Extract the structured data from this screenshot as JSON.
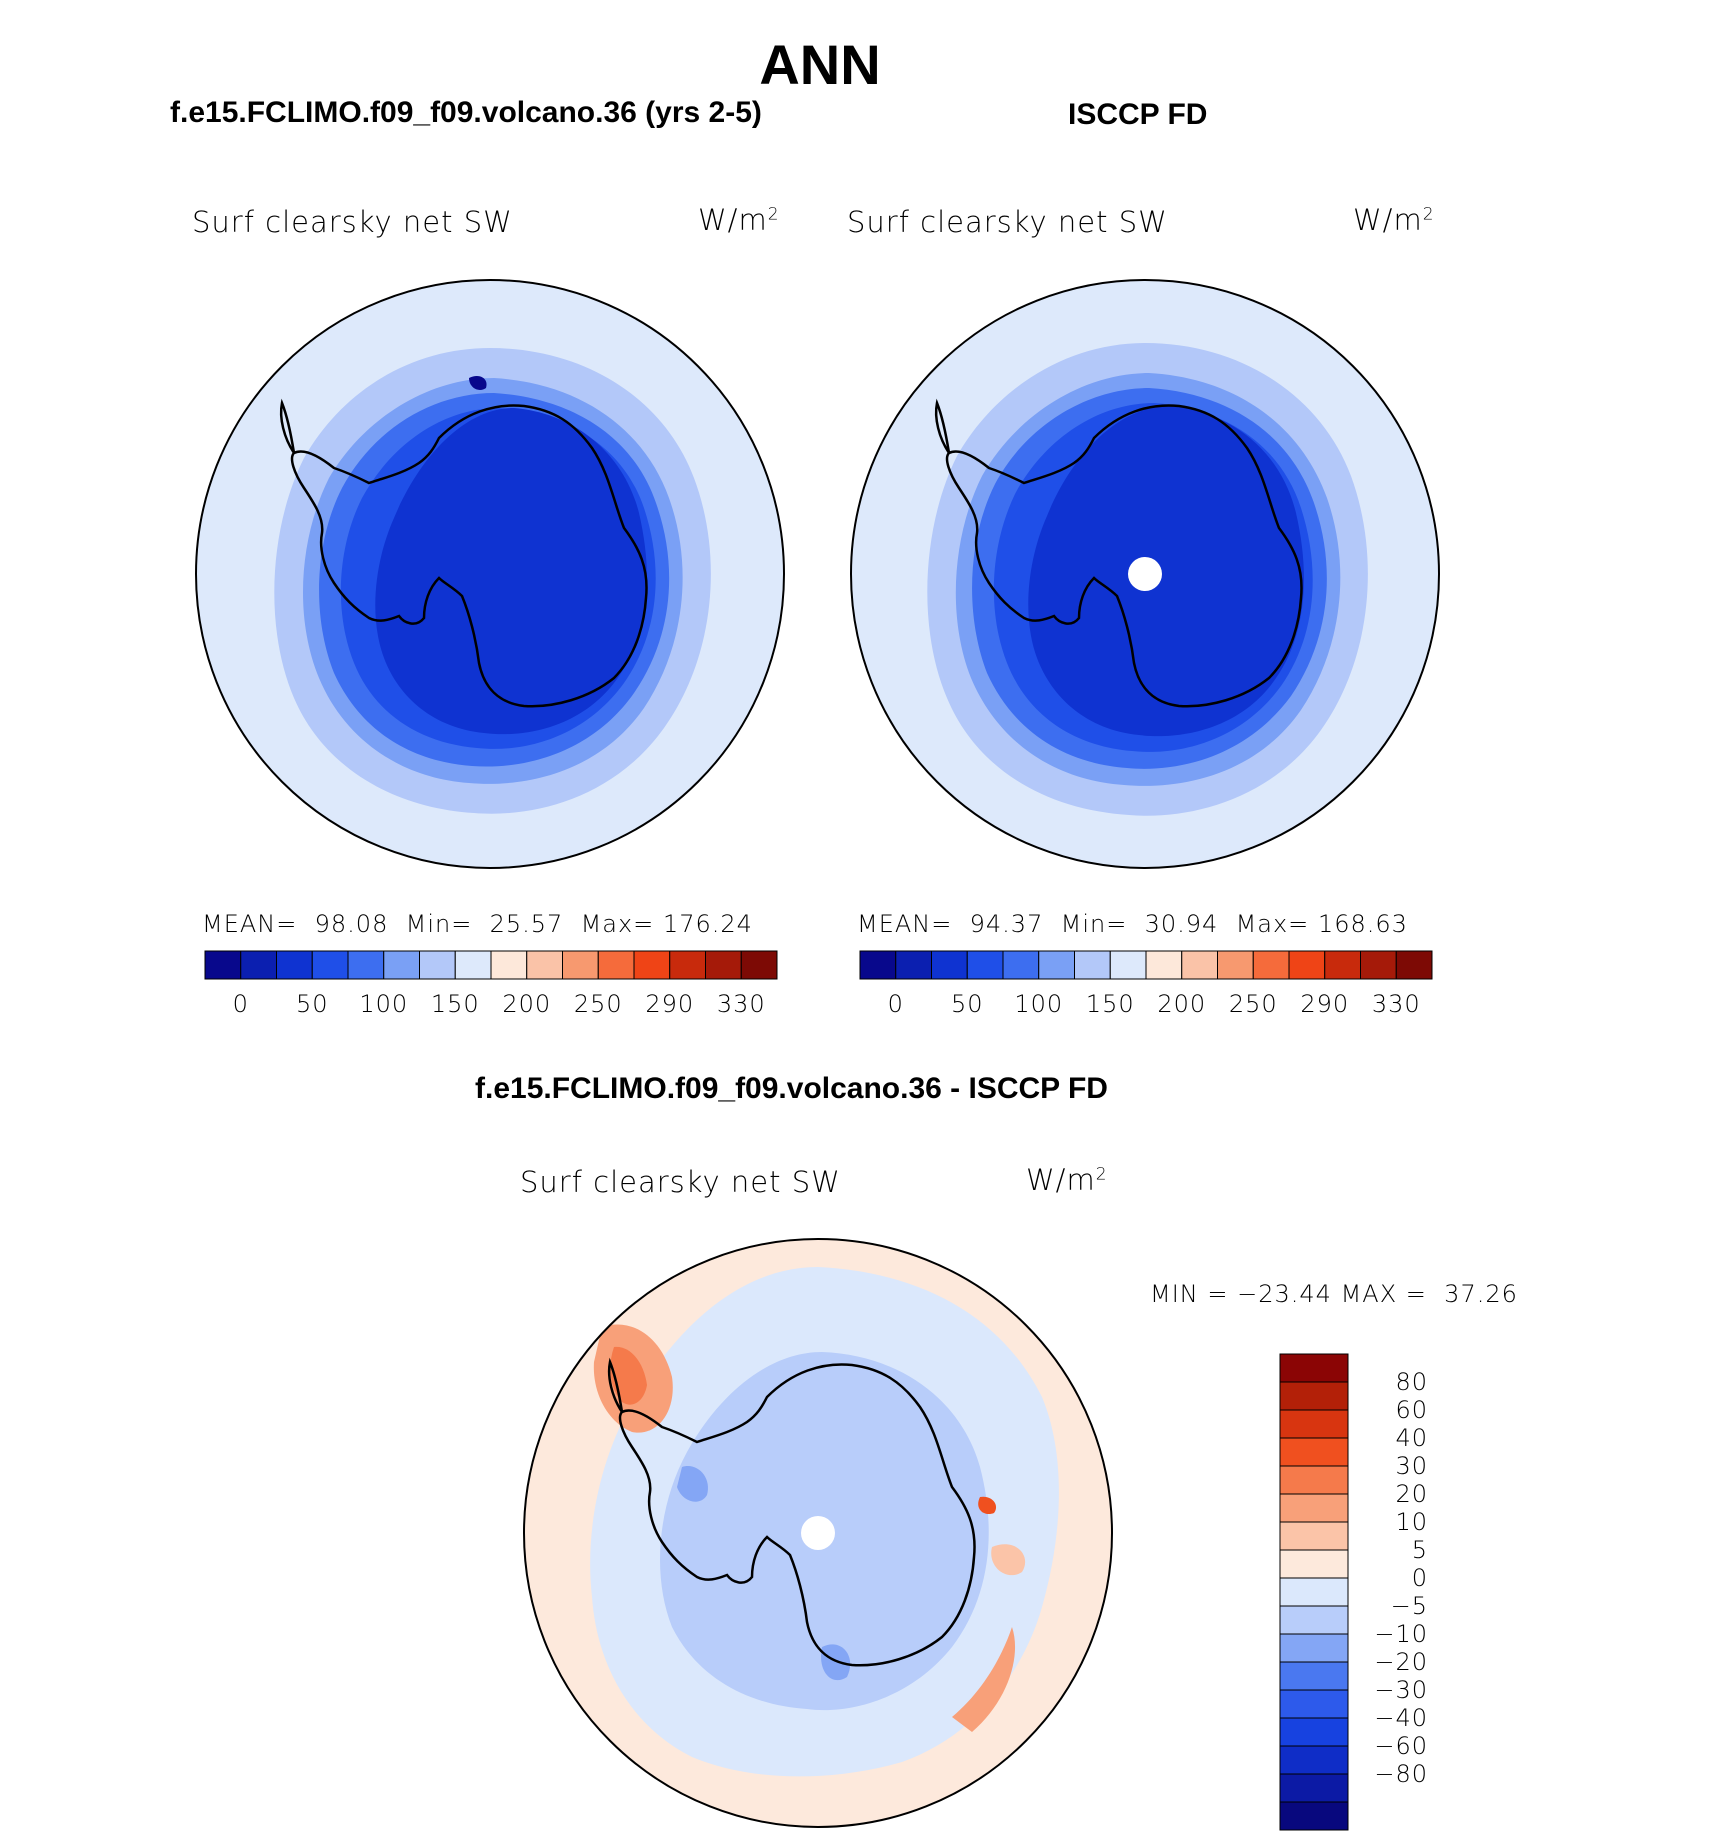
{
  "title": "ANN",
  "variable": "Surf clearsky net SW",
  "units": "W/m",
  "units_sup": "2",
  "colors": {
    "abs_scale": [
      "#08088c",
      "#0b1fb0",
      "#0f33d1",
      "#1f4fe8",
      "#3d6ef0",
      "#7aa0f5",
      "#b3c8f9",
      "#dde9fb",
      "#fde8da",
      "#fac3a8",
      "#f7996f",
      "#f56b3b",
      "#ef4416",
      "#c82a0c",
      "#a51a09",
      "#7d0a05"
    ],
    "diff_scale": [
      "#08087e",
      "#0c1aa5",
      "#0f2dc7",
      "#1742e0",
      "#2d5aeb",
      "#4a78f0",
      "#84a6f5",
      "#b8cdfa",
      "#dbe8fc",
      "#fde9dc",
      "#fbc4a8",
      "#f8a079",
      "#f57a4b",
      "#f0501f",
      "#d83510",
      "#b32008",
      "#8b0505"
    ]
  },
  "panels": [
    {
      "case": "f.e15.FCLIMO.f09_f09.volcano.36 (yrs 2-5)",
      "mean_label": "MEAN=",
      "mean": "98.08",
      "min_label": "Min=",
      "min": "25.57",
      "max_label": "Max=",
      "max": "176.24",
      "ticks": [
        "0",
        "50",
        "100",
        "150",
        "200",
        "250",
        "290",
        "330"
      ]
    },
    {
      "case": "ISCCP FD",
      "mean_label": "MEAN=",
      "mean": "94.37",
      "min_label": "Min=",
      "min": "30.94",
      "max_label": "Max=",
      "max": "168.63",
      "ticks": [
        "0",
        "50",
        "100",
        "150",
        "200",
        "250",
        "290",
        "330"
      ]
    }
  ],
  "diff_panel": {
    "case": "f.e15.FCLIMO.f09_f09.volcano.36 - ISCCP FD",
    "min_label": "MIN =",
    "min": "−23.44",
    "max_label": "MAX =",
    "max": "37.26",
    "ticks": [
      "80",
      "60",
      "40",
      "30",
      "20",
      "10",
      "5",
      "0",
      "−5",
      "−10",
      "−20",
      "−30",
      "−40",
      "−60",
      "−80"
    ]
  }
}
